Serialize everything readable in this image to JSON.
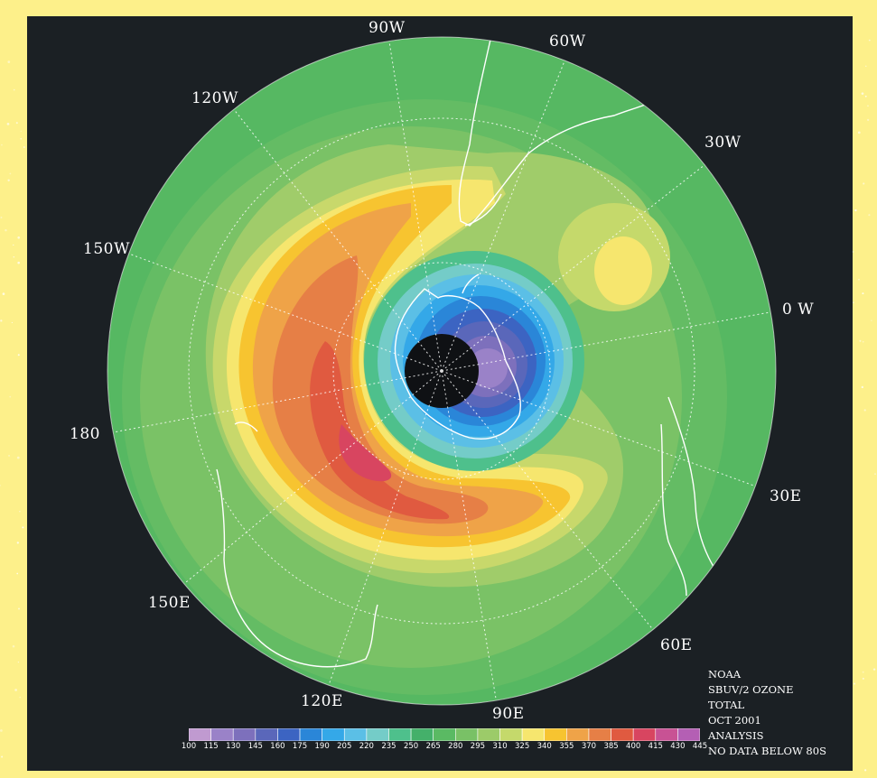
{
  "meridian_labels": [
    {
      "id": "90w",
      "text": "90W"
    },
    {
      "id": "60w",
      "text": "60W"
    },
    {
      "id": "120w",
      "text": "120W"
    },
    {
      "id": "30w",
      "text": "30W"
    },
    {
      "id": "150w",
      "text": "150W"
    },
    {
      "id": "0w",
      "text": "0 W"
    },
    {
      "id": "180",
      "text": "180"
    },
    {
      "id": "30e",
      "text": "30E"
    },
    {
      "id": "150e",
      "text": "150E"
    },
    {
      "id": "60e",
      "text": "60E"
    },
    {
      "id": "120e",
      "text": "120E"
    },
    {
      "id": "90e",
      "text": "90E"
    }
  ],
  "info": {
    "line1": "NOAA",
    "line2": "SBUV/2 OZONE",
    "line3": "TOTAL",
    "line4": "OCT 2001",
    "line5": "ANALYSIS",
    "line6": "NO DATA BELOW 80S"
  },
  "colorbar": {
    "ticks": [
      "100",
      "115",
      "130",
      "145",
      "160",
      "175",
      "190",
      "205",
      "220",
      "235",
      "250",
      "265",
      "280",
      "295",
      "310",
      "325",
      "340",
      "355",
      "370",
      "385",
      "400",
      "415",
      "430",
      "445"
    ],
    "colors": [
      "#c09ad0",
      "#9a82c8",
      "#7d70bc",
      "#5a67ba",
      "#3c64c2",
      "#2a86d8",
      "#34a8e8",
      "#5bbfe6",
      "#74ccc8",
      "#4ec08c",
      "#44b06a",
      "#5aba63",
      "#79c166",
      "#9ccb69",
      "#c5d96b",
      "#f6e66e",
      "#f7c430",
      "#efa348",
      "#e67f46",
      "#e05a40",
      "#d84560",
      "#c85294",
      "#b45fb4"
    ]
  },
  "colors": {
    "frame": "#fdf08a",
    "background": "#1b2024"
  }
}
